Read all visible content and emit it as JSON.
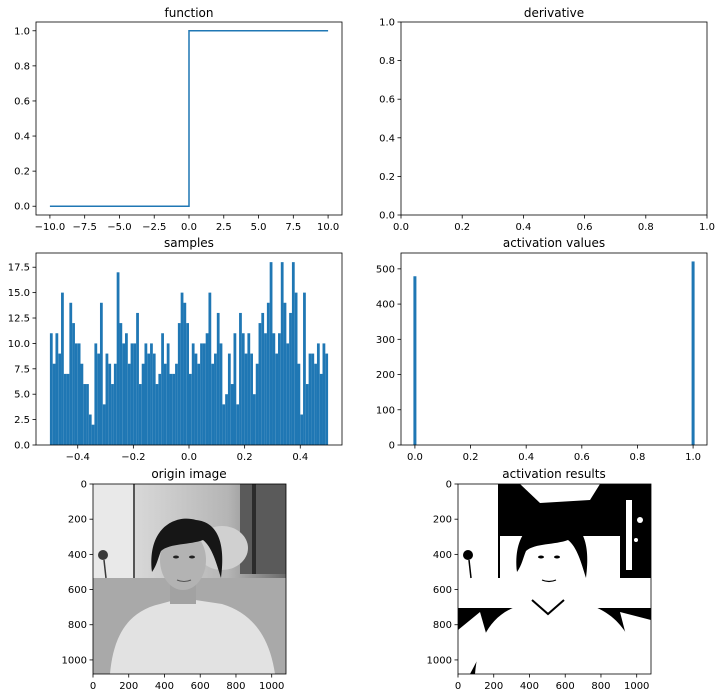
{
  "accent_color": "#1f77b4",
  "chart_data": [
    {
      "type": "line",
      "title": "function",
      "xlim": [
        -11,
        11
      ],
      "ylim": [
        -0.05,
        1.05
      ],
      "xticks": [
        -10,
        -7.5,
        -5,
        -2.5,
        0,
        2.5,
        5,
        7.5,
        10
      ],
      "xtick_labels": [
        "−10.0",
        "−7.5",
        "−5.0",
        "−2.5",
        "0.0",
        "2.5",
        "5.0",
        "7.5",
        "10.0"
      ],
      "yticks": [
        0,
        0.2,
        0.4,
        0.6,
        0.8,
        1.0
      ],
      "ytick_labels": [
        "0.0",
        "0.2",
        "0.4",
        "0.6",
        "0.8",
        "1.0"
      ],
      "series": [
        {
          "x": [
            -10,
            0,
            0,
            10
          ],
          "y": [
            0,
            0,
            1,
            1
          ]
        }
      ]
    },
    {
      "type": "line",
      "title": "derivative",
      "xlim": [
        0,
        1
      ],
      "ylim": [
        0,
        1
      ],
      "xticks": [
        0,
        0.2,
        0.4,
        0.6,
        0.8,
        1.0
      ],
      "xtick_labels": [
        "0.0",
        "0.2",
        "0.4",
        "0.6",
        "0.8",
        "1.0"
      ],
      "yticks": [
        0,
        0.2,
        0.4,
        0.6,
        0.8,
        1.0
      ],
      "ytick_labels": [
        "0.0",
        "0.2",
        "0.4",
        "0.6",
        "0.8",
        "1.0"
      ],
      "series": []
    },
    {
      "type": "bar",
      "title": "samples",
      "xlim": [
        -0.55,
        0.55
      ],
      "ylim": [
        0,
        18.9
      ],
      "xticks": [
        -0.4,
        -0.2,
        0,
        0.2,
        0.4
      ],
      "xtick_labels": [
        "−0.4",
        "−0.2",
        "0.0",
        "0.2",
        "0.4"
      ],
      "yticks": [
        0,
        2.5,
        5,
        7.5,
        10,
        12.5,
        15,
        17.5
      ],
      "ytick_labels": [
        "0.0",
        "2.5",
        "5.0",
        "7.5",
        "10.0",
        "12.5",
        "15.0",
        "17.5"
      ],
      "bins": {
        "start": -0.5,
        "end": 0.5,
        "count": 100
      },
      "values": [
        11,
        8,
        11,
        9,
        15,
        7,
        7,
        14,
        12,
        10,
        10,
        8,
        6,
        6,
        3,
        2,
        10,
        9,
        14,
        4,
        9,
        8,
        6,
        8,
        17,
        12,
        10,
        11,
        8,
        10,
        10,
        13,
        6,
        8,
        10,
        9,
        10,
        9,
        6,
        7,
        11,
        8,
        10,
        7,
        7,
        8,
        12,
        15,
        14,
        12,
        7,
        10,
        9,
        8,
        10,
        10,
        11,
        15,
        8,
        9,
        13,
        10,
        4,
        5,
        9,
        6,
        11,
        4,
        13,
        11,
        9,
        11,
        9,
        5,
        8,
        12,
        13,
        11,
        14,
        18,
        11,
        9,
        11,
        18,
        14,
        10,
        13,
        18,
        15,
        8,
        3,
        15,
        6,
        9,
        9,
        8,
        10,
        7,
        10,
        9
      ]
    },
    {
      "type": "bar",
      "title": "activation values",
      "xlim": [
        -0.05,
        1.05
      ],
      "ylim": [
        0,
        545
      ],
      "xticks": [
        0,
        0.2,
        0.4,
        0.6,
        0.8,
        1.0
      ],
      "xtick_labels": [
        "0.0",
        "0.2",
        "0.4",
        "0.6",
        "0.8",
        "1.0"
      ],
      "yticks": [
        0,
        100,
        200,
        300,
        400,
        500
      ],
      "ytick_labels": [
        "0",
        "100",
        "200",
        "300",
        "400",
        "500"
      ],
      "bars": [
        {
          "x": 0,
          "value": 479
        },
        {
          "x": 1,
          "value": 521
        }
      ]
    },
    {
      "type": "image",
      "title": "origin image",
      "extent": [
        0,
        1080,
        1080,
        0
      ],
      "xticks": [
        0,
        200,
        400,
        600,
        800,
        1000
      ],
      "yticks": [
        0,
        200,
        400,
        600,
        800,
        1000
      ],
      "tick_labels": [
        "0",
        "200",
        "400",
        "600",
        "800",
        "1000"
      ],
      "cmap": "gray"
    },
    {
      "type": "image",
      "title": "activation results",
      "extent": [
        0,
        1080,
        1080,
        0
      ],
      "xticks": [
        0,
        200,
        400,
        600,
        800,
        1000
      ],
      "yticks": [
        0,
        200,
        400,
        600,
        800,
        1000
      ],
      "tick_labels": [
        "0",
        "200",
        "400",
        "600",
        "800",
        "1000"
      ],
      "cmap": "binary"
    }
  ]
}
